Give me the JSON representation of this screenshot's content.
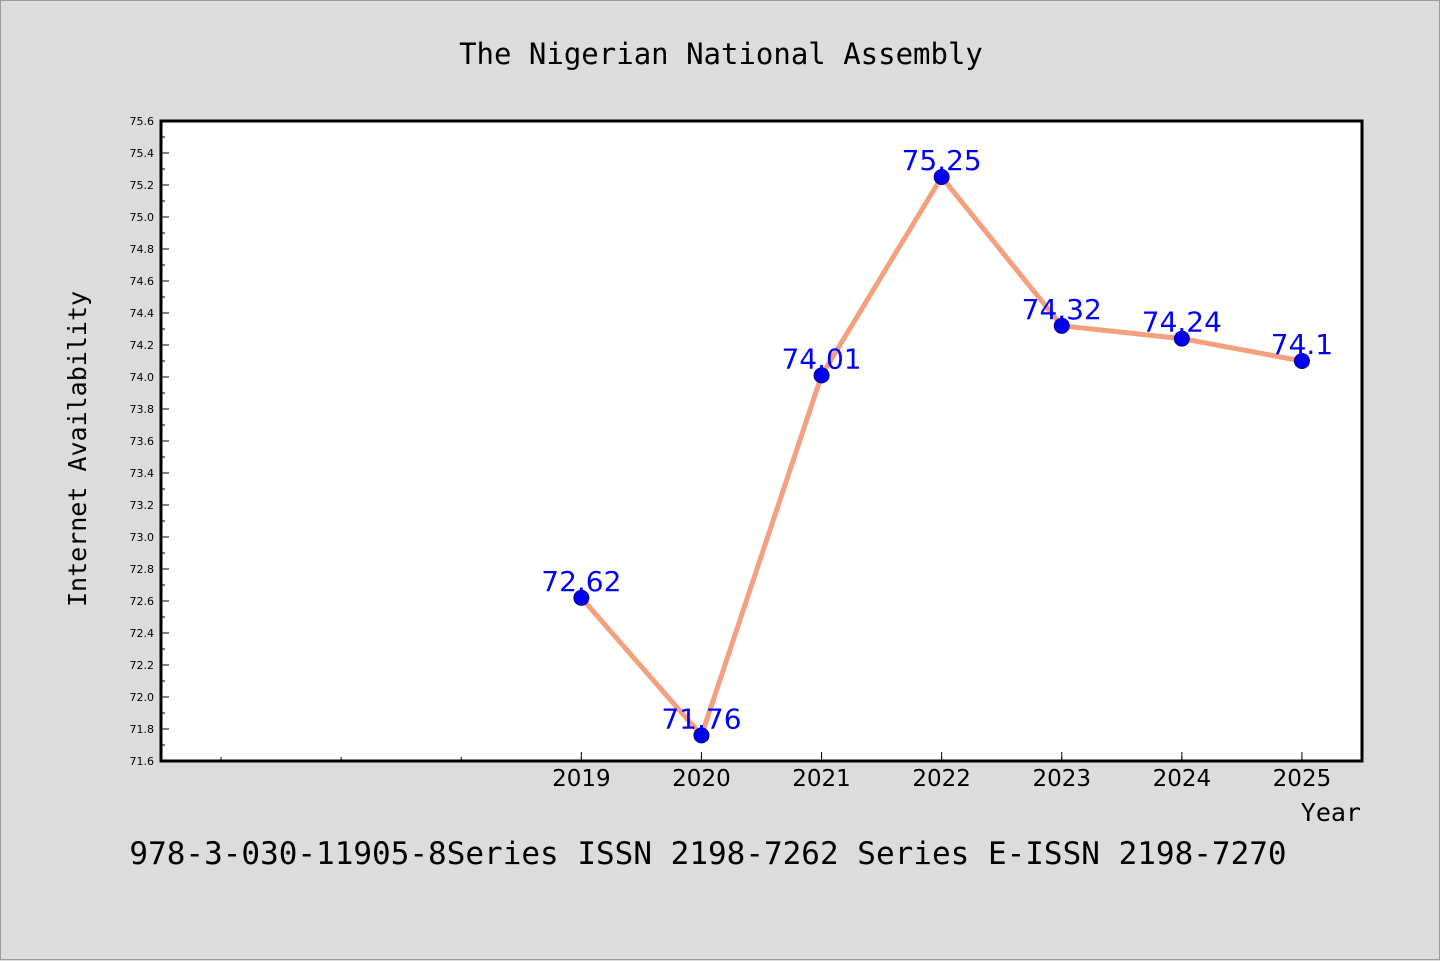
{
  "chart_data": {
    "type": "line",
    "title": "The Nigerian National Assembly",
    "xlabel": "Year",
    "ylabel": "Internet Availability",
    "footer": "978-3-030-11905-8Series ISSN 2198-7262 Series E-ISSN 2198-7270",
    "x": [
      "2019",
      "2020",
      "2021",
      "2022",
      "2023",
      "2024",
      "2025"
    ],
    "x_positions": [
      2019,
      2020,
      2021,
      2022,
      2023,
      2024,
      2025
    ],
    "xlim": [
      2015.5,
      2025.5
    ],
    "series": [
      {
        "values": [
          72.62,
          71.76,
          74.01,
          75.25,
          74.32,
          74.24,
          74.1
        ],
        "data_labels": [
          "72.62",
          "71.76",
          "74.01",
          "75.25",
          "74.32",
          "74.24",
          "74.1"
        ]
      }
    ],
    "ylim": [
      71.6,
      75.6
    ],
    "yticks": [
      "71.6",
      "71.8",
      "72.0",
      "72.2",
      "72.4",
      "72.6",
      "72.8",
      "73.0",
      "73.2",
      "73.4",
      "73.6",
      "73.8",
      "74.0",
      "74.2",
      "74.4",
      "74.6",
      "74.8",
      "75.0",
      "75.2",
      "75.4",
      "75.6"
    ],
    "grid": false,
    "legend": "none",
    "colors": {
      "line": "#f4a07f",
      "marker": "#0000ee",
      "marker_edge": "#00008b",
      "label": "#0000ff",
      "plot_bg": "#ffffff",
      "figure_bg": "#dcdcdc"
    }
  }
}
